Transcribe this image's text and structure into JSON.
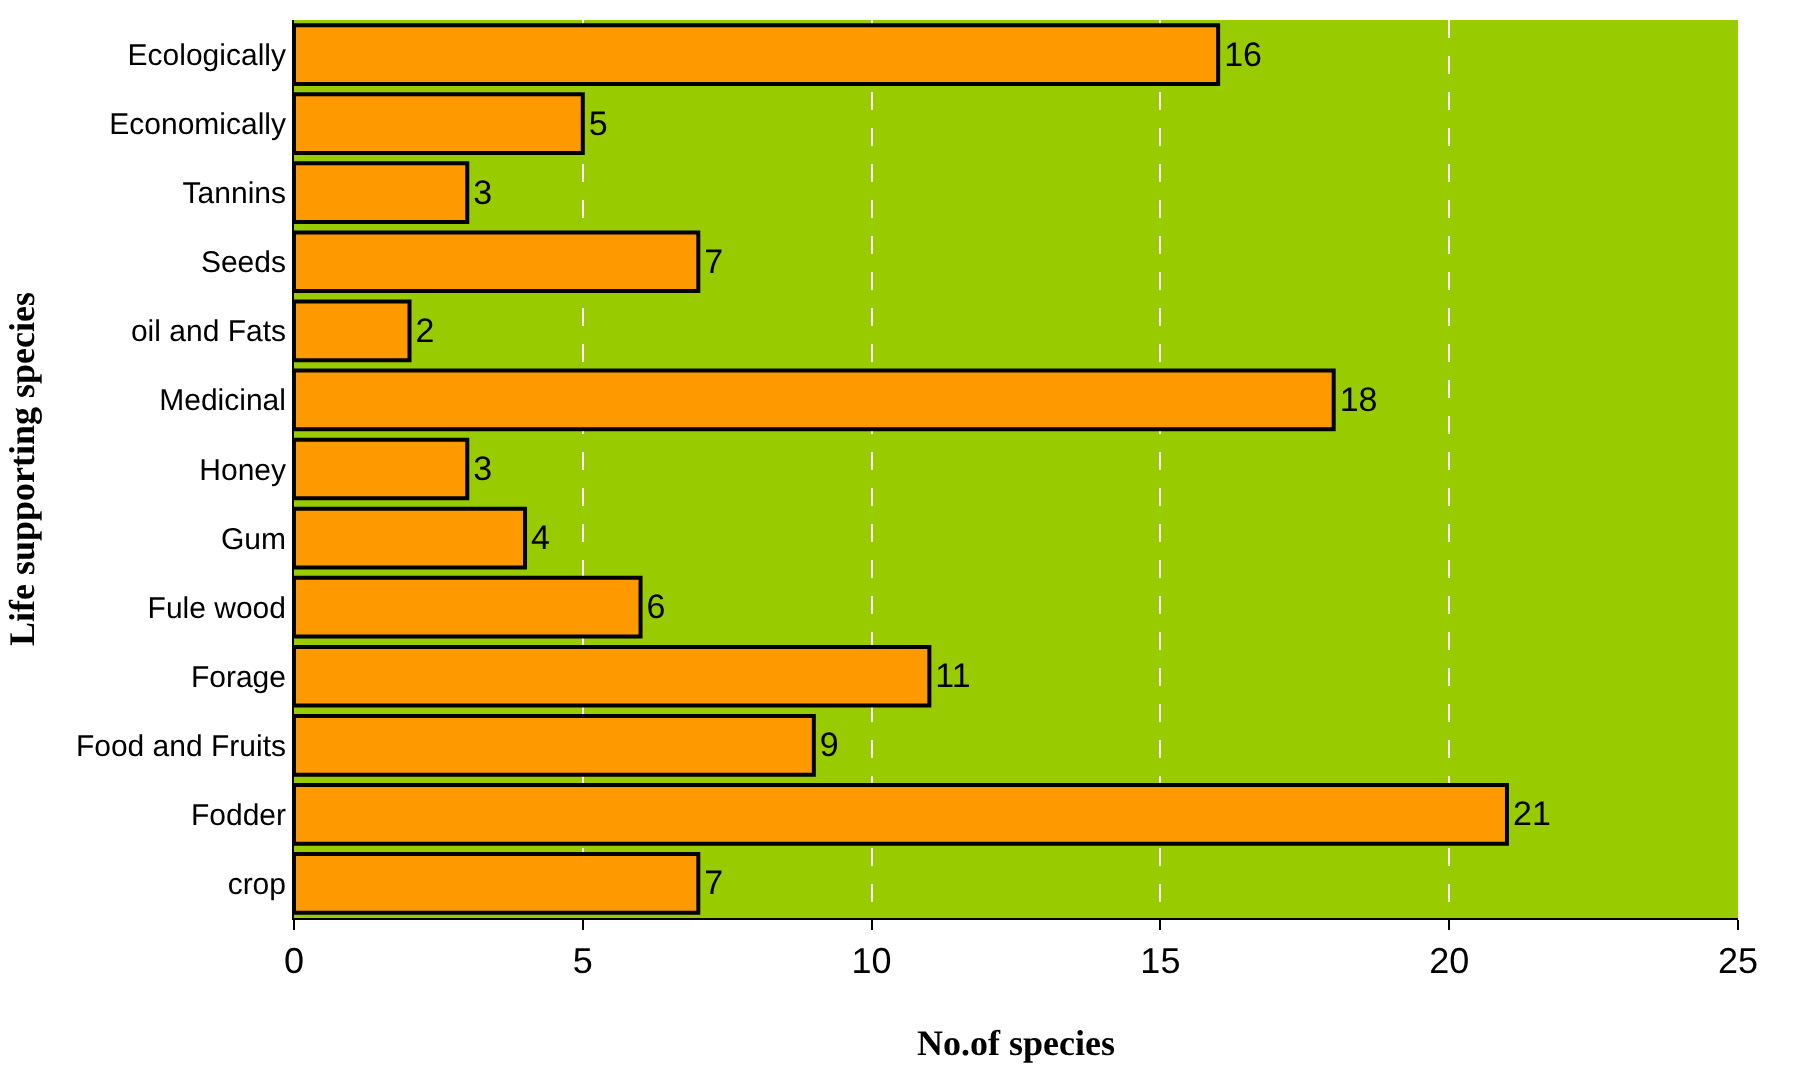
{
  "chart_data": {
    "type": "bar",
    "orientation": "horizontal",
    "xlabel": "No.of species",
    "ylabel": "Life supporting species",
    "categories": [
      "Ecologically",
      "Economically",
      "Tannins",
      "Seeds",
      "oil and Fats",
      "Medicinal",
      "Honey",
      "Gum",
      "Fule wood",
      "Forage",
      "Food and Fruits",
      "Fodder",
      "crop"
    ],
    "values": [
      16,
      5,
      3,
      7,
      2,
      18,
      3,
      4,
      6,
      11,
      9,
      21,
      7
    ],
    "color": "#ff9900",
    "xlim": [
      0,
      25
    ],
    "xticks": [
      0,
      5,
      10,
      15,
      20,
      25
    ],
    "grid": "x",
    "data_labels": true,
    "legend": false
  }
}
